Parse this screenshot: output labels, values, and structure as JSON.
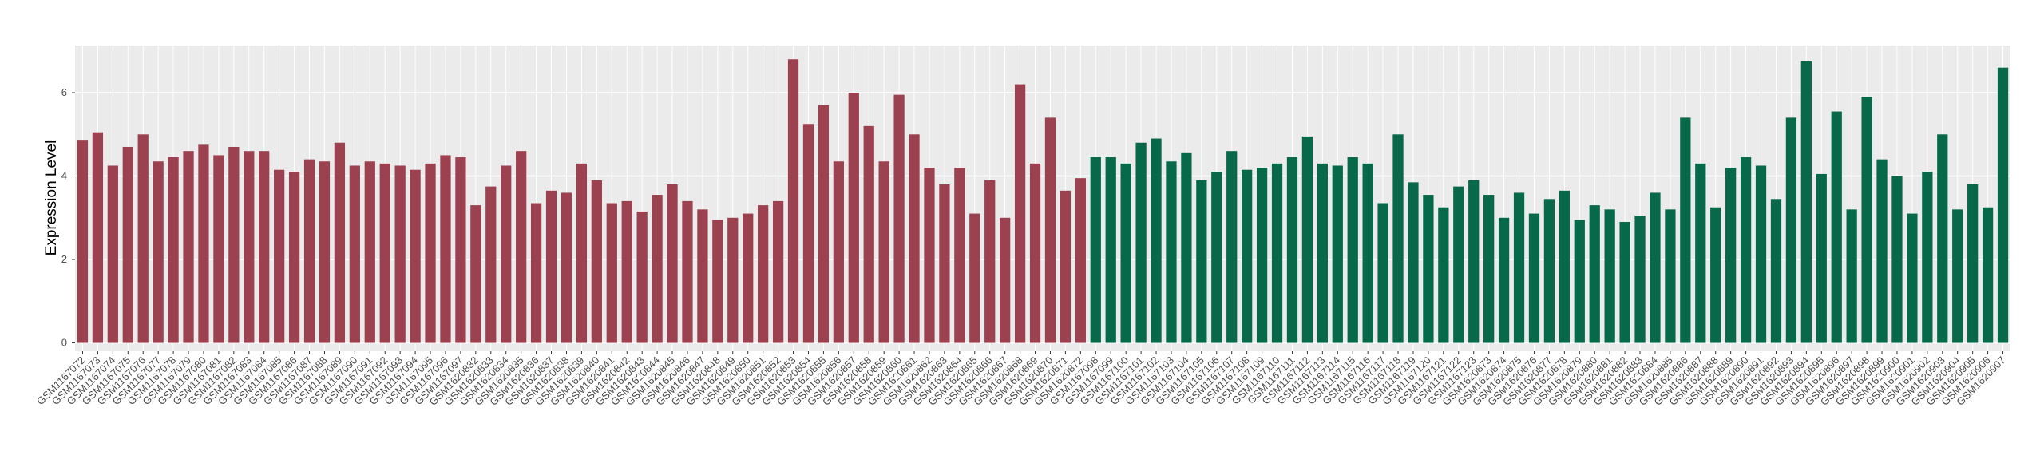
{
  "chart_data": {
    "type": "bar",
    "ylabel": "Expression Level",
    "ylim": [
      -0.2,
      7.13
    ],
    "yticks": [
      0,
      2,
      4,
      6
    ],
    "grid": true,
    "series": [
      {
        "color": "#9b4150",
        "categories": [
          "GSM1167072",
          "GSM1167073",
          "GSM1167074",
          "GSM1167075",
          "GSM1167076",
          "GSM1167077",
          "GSM1167078",
          "GSM1167079",
          "GSM1167080",
          "GSM1167081",
          "GSM1167082",
          "GSM1167083",
          "GSM1167084",
          "GSM1167085",
          "GSM1167086",
          "GSM1167087",
          "GSM1167088",
          "GSM1167089",
          "GSM1167090",
          "GSM1167091",
          "GSM1167092",
          "GSM1167093",
          "GSM1167094",
          "GSM1167095",
          "GSM1167096",
          "GSM1167097",
          "GSM1620832",
          "GSM1620833",
          "GSM1620834",
          "GSM1620835",
          "GSM1620836",
          "GSM1620837",
          "GSM1620838",
          "GSM1620839",
          "GSM1620840",
          "GSM1620841",
          "GSM1620842",
          "GSM1620843",
          "GSM1620844",
          "GSM1620845",
          "GSM1620846",
          "GSM1620847",
          "GSM1620848",
          "GSM1620849",
          "GSM1620850",
          "GSM1620851",
          "GSM1620852",
          "GSM1620853",
          "GSM1620854",
          "GSM1620855",
          "GSM1620856",
          "GSM1620857",
          "GSM1620858",
          "GSM1620859",
          "GSM1620860",
          "GSM1620861",
          "GSM1620862",
          "GSM1620863",
          "GSM1620864",
          "GSM1620865",
          "GSM1620866",
          "GSM1620867",
          "GSM1620868",
          "GSM1620869",
          "GSM1620870",
          "GSM1620871",
          "GSM1620872"
        ],
        "values": [
          4.85,
          5.05,
          4.25,
          4.7,
          5.0,
          4.35,
          4.45,
          4.6,
          4.75,
          4.5,
          4.7,
          4.6,
          4.6,
          4.15,
          4.1,
          4.4,
          4.35,
          4.8,
          4.25,
          4.35,
          4.3,
          4.25,
          4.15,
          4.3,
          4.5,
          4.45,
          3.3,
          3.75,
          4.25,
          4.6,
          3.35,
          3.65,
          3.6,
          4.3,
          3.9,
          3.35,
          3.4,
          3.15,
          3.55,
          3.8,
          3.4,
          3.2,
          2.95,
          3.0,
          3.1,
          3.3,
          3.4,
          6.8,
          5.25,
          5.7,
          4.35,
          6.0,
          5.2,
          4.35,
          5.95,
          5.0,
          4.2,
          3.8,
          4.2,
          3.1,
          3.9,
          3.0,
          6.2,
          4.3,
          5.4,
          3.65,
          3.95
        ]
      },
      {
        "color": "#08684a",
        "categories": [
          "GSM1167098",
          "GSM1167099",
          "GSM1167100",
          "GSM1167101",
          "GSM1167102",
          "GSM1167103",
          "GSM1167104",
          "GSM1167105",
          "GSM1167106",
          "GSM1167107",
          "GSM1167108",
          "GSM1167109",
          "GSM1167110",
          "GSM1167111",
          "GSM1167112",
          "GSM1167113",
          "GSM1167114",
          "GSM1167115",
          "GSM1167116",
          "GSM1167117",
          "GSM1167118",
          "GSM1167119",
          "GSM1167120",
          "GSM1167121",
          "GSM1167122",
          "GSM1167123",
          "GSM1620873",
          "GSM1620874",
          "GSM1620875",
          "GSM1620876",
          "GSM1620877",
          "GSM1620878",
          "GSM1620879",
          "GSM1620880",
          "GSM1620881",
          "GSM1620882",
          "GSM1620883",
          "GSM1620884",
          "GSM1620885",
          "GSM1620886",
          "GSM1620887",
          "GSM1620888",
          "GSM1620889",
          "GSM1620890",
          "GSM1620891",
          "GSM1620892",
          "GSM1620893",
          "GSM1620894",
          "GSM1620895",
          "GSM1620896",
          "GSM1620897",
          "GSM1620898",
          "GSM1620899",
          "GSM1620900",
          "GSM1620901",
          "GSM1620902",
          "GSM1620903",
          "GSM1620904",
          "GSM1620905",
          "GSM1620906",
          "GSM1620907"
        ],
        "values": [
          4.45,
          4.45,
          4.3,
          4.8,
          4.9,
          4.35,
          4.55,
          3.9,
          4.1,
          4.6,
          4.15,
          4.2,
          4.3,
          4.45,
          4.95,
          4.3,
          4.25,
          4.45,
          4.3,
          3.35,
          5.0,
          3.85,
          3.55,
          3.25,
          3.75,
          3.9,
          3.55,
          3.0,
          3.6,
          3.1,
          3.45,
          3.65,
          2.95,
          3.3,
          3.2,
          2.9,
          3.05,
          3.6,
          3.2,
          5.4,
          4.3,
          3.25,
          4.2,
          4.45,
          4.25,
          3.45,
          5.4,
          6.75,
          4.05,
          5.55,
          3.2,
          5.9,
          4.4,
          4.0,
          3.1,
          4.1,
          5.0,
          3.2,
          3.8,
          3.25,
          6.6
        ]
      }
    ]
  }
}
